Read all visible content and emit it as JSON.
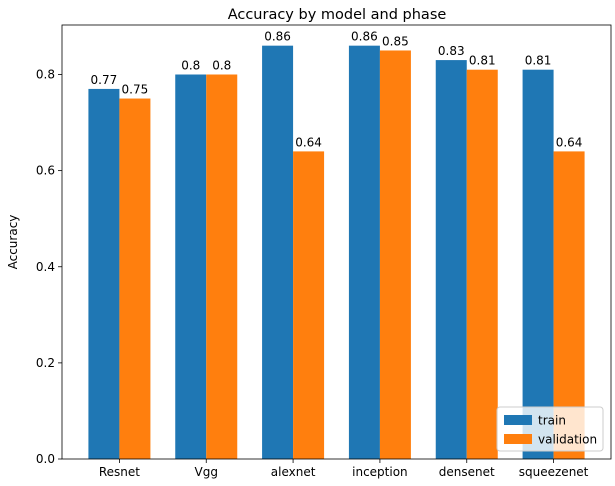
{
  "chart_data": {
    "type": "bar",
    "title": "Accuracy by model and phase",
    "xlabel": "",
    "ylabel": "Accuracy",
    "categories": [
      "Resnet",
      "Vgg",
      "alexnet",
      "inception",
      "densenet",
      "squeezenet"
    ],
    "series": [
      {
        "name": "train",
        "color": "#1f77b4",
        "values": [
          0.77,
          0.8,
          0.86,
          0.86,
          0.83,
          0.81
        ]
      },
      {
        "name": "validation",
        "color": "#ff7f0e",
        "values": [
          0.75,
          0.8,
          0.64,
          0.85,
          0.81,
          0.64
        ]
      }
    ],
    "value_labels": [
      [
        "0.77",
        "0.8",
        "0.86",
        "0.86",
        "0.83",
        "0.81"
      ],
      [
        "0.75",
        "0.8",
        "0.64",
        "0.85",
        "0.81",
        "0.64"
      ]
    ],
    "ylim": [
      0,
      0.903
    ],
    "yticks": [
      {
        "value": 0.0,
        "label": "0.0"
      },
      {
        "value": 0.2,
        "label": "0.2"
      },
      {
        "value": 0.4,
        "label": "0.4"
      },
      {
        "value": 0.6,
        "label": "0.6"
      },
      {
        "value": 0.8,
        "label": "0.8"
      }
    ],
    "grid": false,
    "legend_position": "bottom-right"
  }
}
